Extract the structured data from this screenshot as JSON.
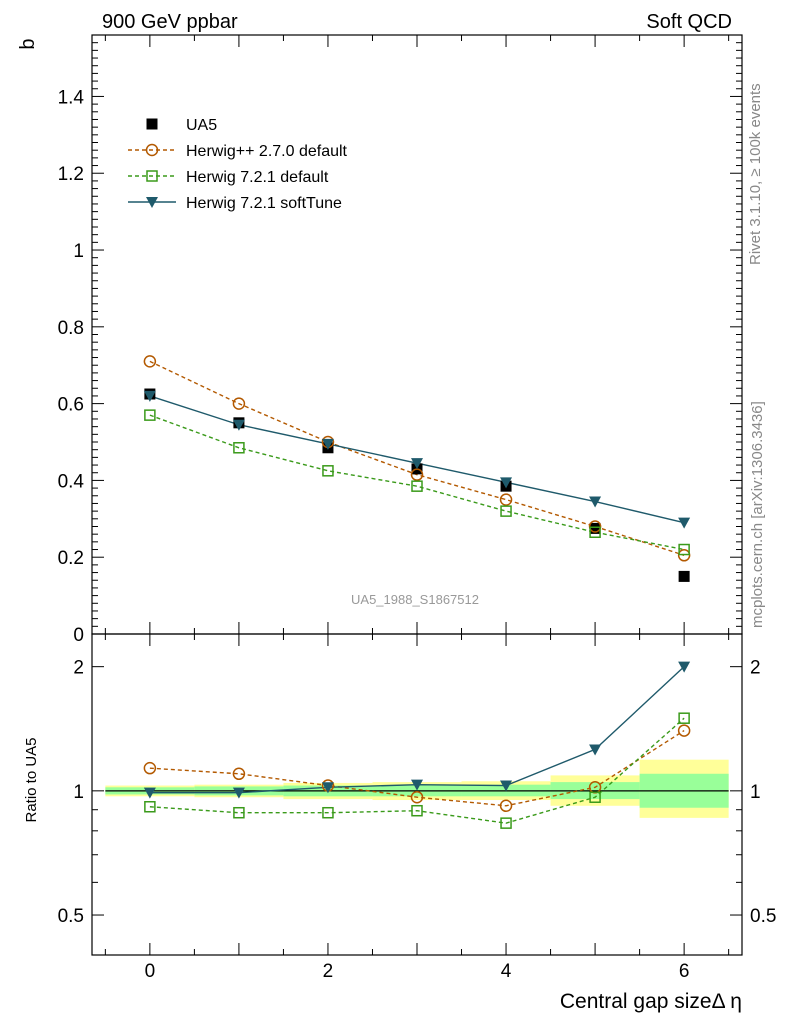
{
  "header": {
    "left": "900 GeV ppbar",
    "right": "Soft QCD"
  },
  "side_text": {
    "rivet": "Rivet 3.1.10, ≥ 100k events",
    "mcplots": "mcplots.cern.ch [arXiv:1306.3436]"
  },
  "watermark": "UA5_1988_S1867512",
  "colors": {
    "data": "#000000",
    "herwigpp": "#b35900",
    "herwig721": "#3a9a1a",
    "softtune": "#1f5a6b",
    "band_yellow": "#ffff99",
    "band_green": "#99ff99"
  },
  "chart_data": [
    {
      "type": "scatter",
      "ylabel": "b",
      "xlim": [
        -0.65,
        6.65
      ],
      "ylim": [
        0,
        1.56
      ],
      "y_ticks": [
        0,
        0.2,
        0.4,
        0.6,
        0.8,
        1,
        1.2,
        1.4
      ],
      "y_tick_labels": [
        "0",
        "0.2",
        "0.4",
        "0.6",
        "0.8",
        "1",
        "1.2",
        "1.4"
      ],
      "series": [
        {
          "name": "UA5",
          "style": "data",
          "marker": "square-filled",
          "x": [
            0,
            1,
            2,
            3,
            4,
            5,
            6
          ],
          "y": [
            0.625,
            0.55,
            0.485,
            0.43,
            0.385,
            0.275,
            0.15
          ]
        },
        {
          "name": "Herwig++ 2.7.0 default",
          "style": "dashed",
          "marker": "circle-open",
          "x": [
            0,
            1,
            2,
            3,
            4,
            5,
            6
          ],
          "y": [
            0.71,
            0.6,
            0.5,
            0.415,
            0.35,
            0.28,
            0.205
          ]
        },
        {
          "name": "Herwig 7.2.1 default",
          "style": "dashed",
          "marker": "square-open",
          "x": [
            0,
            1,
            2,
            3,
            4,
            5,
            6
          ],
          "y": [
            0.57,
            0.485,
            0.425,
            0.385,
            0.32,
            0.265,
            0.22
          ]
        },
        {
          "name": "Herwig 7.2.1 softTune",
          "style": "solid",
          "marker": "triangle-down",
          "x": [
            0,
            1,
            2,
            3,
            4,
            5,
            6
          ],
          "y": [
            0.62,
            0.545,
            0.495,
            0.445,
            0.395,
            0.345,
            0.29
          ]
        }
      ]
    },
    {
      "type": "scatter",
      "ylabel": "Ratio to UA5",
      "xlabel": "Central gap sizeΔ η",
      "y_scale": "log",
      "xlim": [
        -0.65,
        6.65
      ],
      "ylim": [
        0.4,
        2.4
      ],
      "x_ticks": [
        0,
        2,
        4,
        6
      ],
      "x_tick_labels": [
        "0",
        "2",
        "4",
        "6"
      ],
      "y_ticks": [
        0.5,
        1,
        2
      ],
      "y_tick_labels": [
        "0.5",
        "1",
        "2"
      ],
      "bands": [
        {
          "x": [
            -0.5,
            0.5
          ],
          "yellow": [
            0.97,
            1.03
          ],
          "green": [
            0.98,
            1.02
          ]
        },
        {
          "x": [
            0.5,
            1.5
          ],
          "yellow": [
            0.965,
            1.035
          ],
          "green": [
            0.975,
            1.025
          ]
        },
        {
          "x": [
            1.5,
            2.5
          ],
          "yellow": [
            0.955,
            1.045
          ],
          "green": [
            0.97,
            1.03
          ]
        },
        {
          "x": [
            2.5,
            3.5
          ],
          "yellow": [
            0.95,
            1.05
          ],
          "green": [
            0.97,
            1.03
          ]
        },
        {
          "x": [
            3.5,
            4.5
          ],
          "yellow": [
            0.95,
            1.055
          ],
          "green": [
            0.97,
            1.035
          ]
        },
        {
          "x": [
            4.5,
            5.5
          ],
          "yellow": [
            0.92,
            1.09
          ],
          "green": [
            0.955,
            1.05
          ]
        },
        {
          "x": [
            5.5,
            6.5
          ],
          "yellow": [
            0.86,
            1.19
          ],
          "green": [
            0.91,
            1.1
          ]
        }
      ],
      "series": [
        {
          "name": "Herwig++ 2.7.0 default",
          "style": "dashed",
          "marker": "circle-open",
          "x": [
            0,
            1,
            2,
            3,
            4,
            5,
            6
          ],
          "y": [
            1.135,
            1.1,
            1.03,
            0.965,
            0.92,
            1.02,
            1.4
          ]
        },
        {
          "name": "Herwig 7.2.1 default",
          "style": "dashed",
          "marker": "square-open",
          "x": [
            0,
            1,
            2,
            3,
            4,
            5,
            6
          ],
          "y": [
            0.915,
            0.885,
            0.885,
            0.895,
            0.835,
            0.965,
            1.5
          ]
        },
        {
          "name": "Herwig 7.2.1 softTune",
          "style": "solid",
          "marker": "triangle-down",
          "x": [
            0,
            1,
            2,
            3,
            4,
            5,
            6
          ],
          "y": [
            0.99,
            0.99,
            1.02,
            1.035,
            1.03,
            1.26,
            2.0
          ]
        }
      ]
    }
  ]
}
